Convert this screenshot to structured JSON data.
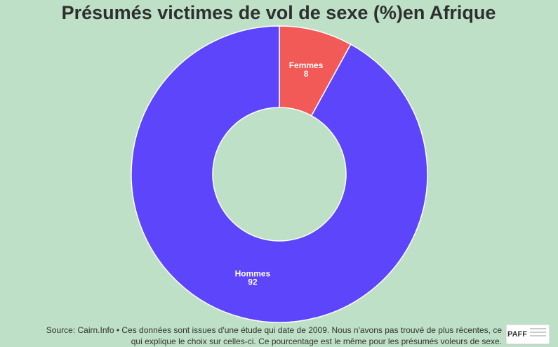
{
  "chart_data": {
    "type": "donut",
    "title": "Présumés victimes de vol de sexe (%)en Afrique",
    "categories": [
      "Femmes",
      "Hommes"
    ],
    "values": [
      8,
      92
    ],
    "colors": [
      "#f25a57",
      "#5c45fb"
    ],
    "source_lines": [
      "Source: Cairn.Info • Ces données sont issues d'une étude qui date de 2009. Nous n'avons pas trouvé de plus récentes, ce",
      "qui explique le choix sur celles-ci. Ce pourcentage est le même pour les présumés voleurs de sexe."
    ],
    "logo": "PAFF"
  }
}
